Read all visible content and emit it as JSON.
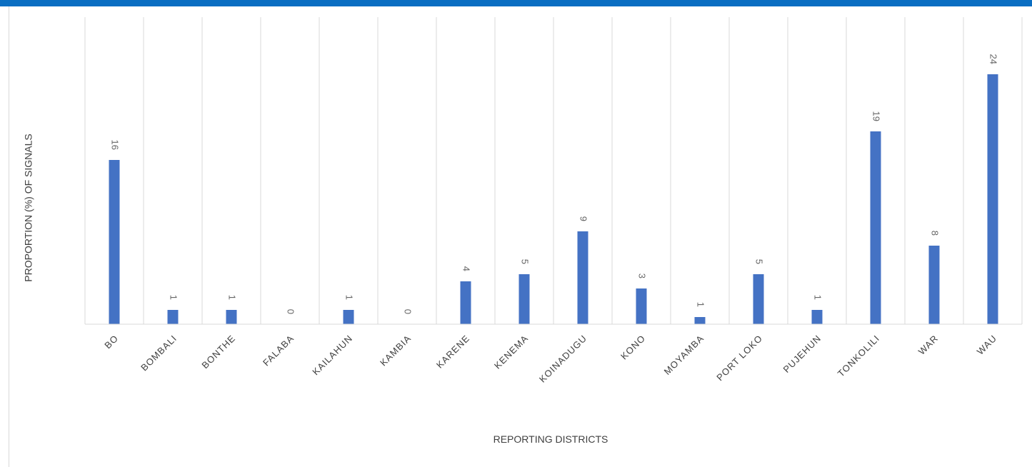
{
  "colors": {
    "header_bar": "#0a6ec2",
    "bar": "#4472c4",
    "grid": "#d9d9d9"
  },
  "chart_data": {
    "type": "bar",
    "title": "",
    "xlabel": "REPORTING DISTRICTS",
    "ylabel": "PROPORTION (%) OF SIGNALS",
    "categories": [
      "BO",
      "BOMBALI",
      "BONTHE",
      "FALABA",
      "KAILAHUN",
      "KAMBIA",
      "KARENE",
      "KENEMA",
      "KOINADUGU",
      "KONO",
      "MOYAMBA",
      "PORT LOKO",
      "PUJEHUN",
      "TONKOLILI",
      "WAR",
      "WAU"
    ],
    "values": [
      16,
      1,
      1,
      0,
      1,
      0,
      4,
      5,
      9,
      3,
      1,
      5,
      1,
      19,
      8,
      24
    ],
    "data_labels": [
      "16",
      "1",
      "1",
      "0",
      "1",
      "0",
      "4",
      "5",
      "9",
      "3",
      "1",
      "5",
      "1",
      "19",
      "8",
      "24"
    ],
    "bar_heights_pct": [
      11.5,
      1.0,
      1.0,
      0,
      1.0,
      0,
      3.0,
      3.5,
      6.5,
      2.5,
      0.5,
      3.5,
      1.0,
      13.5,
      5.5,
      17.5
    ],
    "ylim": [
      0,
      20
    ],
    "grid": true,
    "legend": "none"
  }
}
